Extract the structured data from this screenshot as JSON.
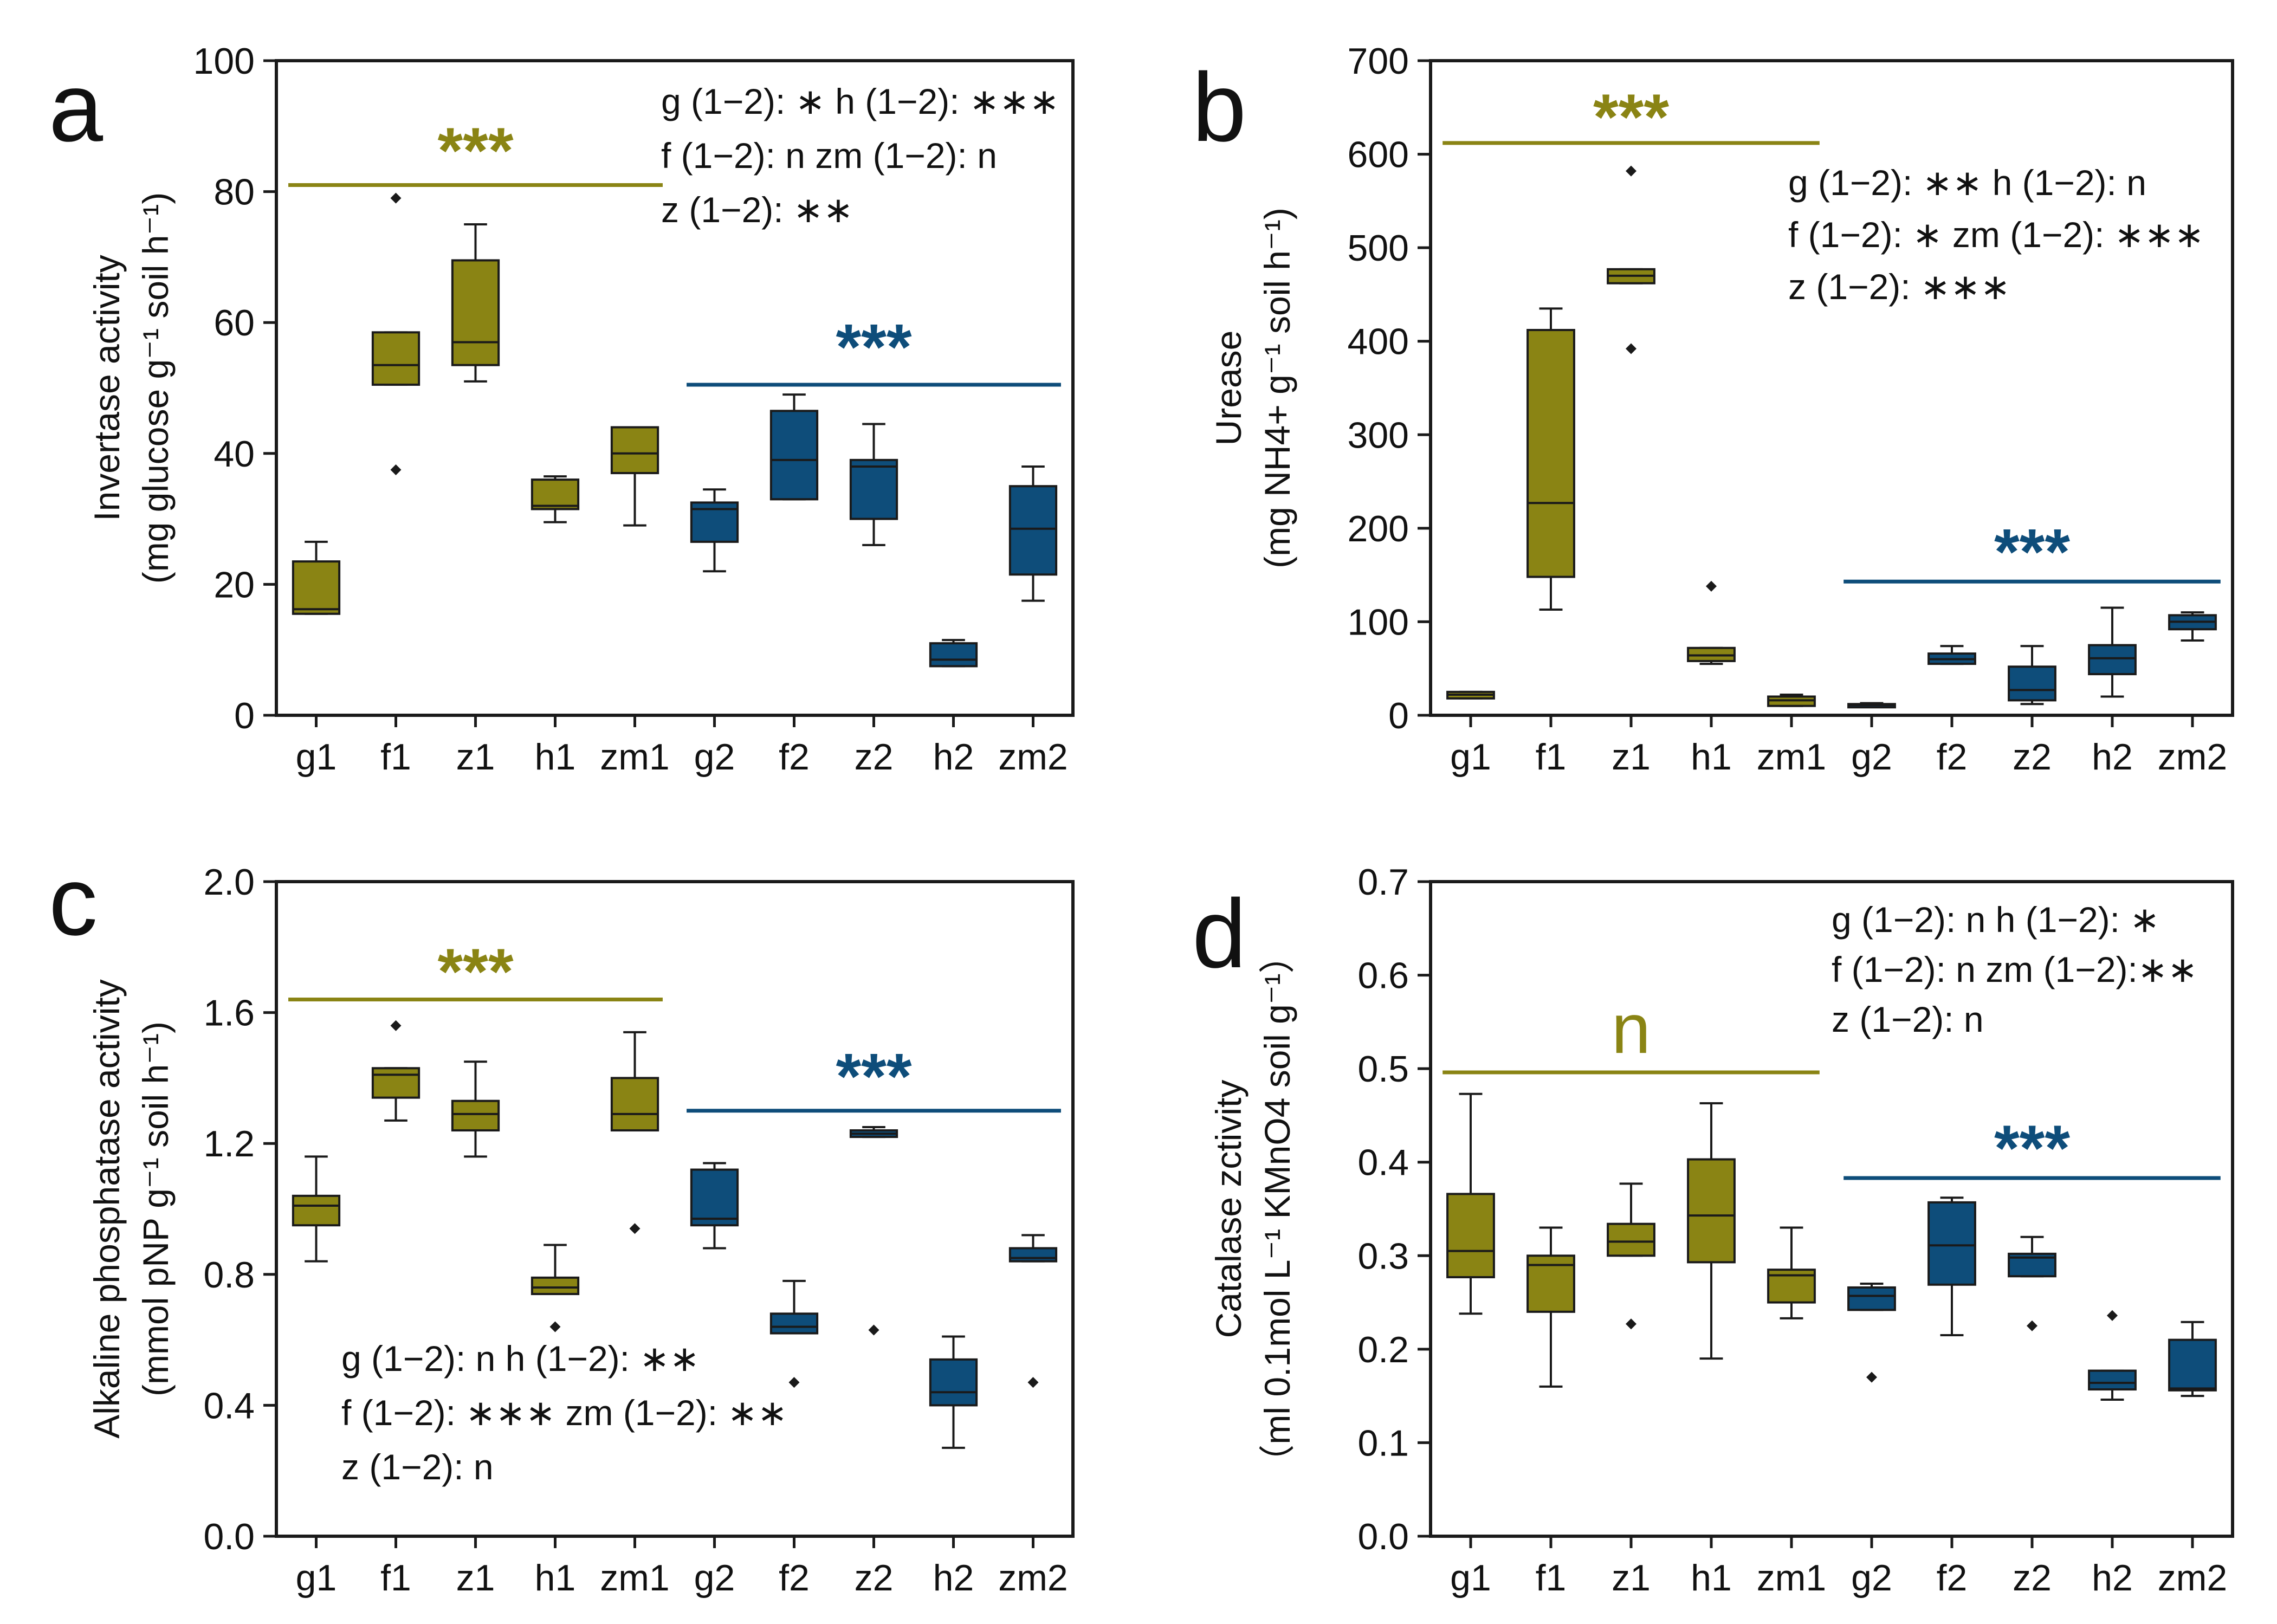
{
  "colors": {
    "group1": "#8a8414",
    "group2": "#0e4d7a",
    "outline": "#1a1a1a",
    "text": "#111111"
  },
  "chart_data": [
    {
      "type": "box",
      "panel_label": "a",
      "ylabel_main": "Invertase activity",
      "ylabel_unit": "(mg glucose g⁻¹ soil h⁻¹)",
      "ylim": [
        0,
        100
      ],
      "yticks": [
        "0",
        "20",
        "40",
        "60",
        "80",
        "100"
      ],
      "categories": [
        "g1",
        "f1",
        "z1",
        "h1",
        "zm1",
        "g2",
        "f2",
        "z2",
        "h2",
        "zm2"
      ],
      "boxes": [
        {
          "min": 15.5,
          "q1": 15.5,
          "median": 16.2,
          "q3": 23.5,
          "max": 26.5,
          "outliers": []
        },
        {
          "min": 50.5,
          "q1": 50.5,
          "median": 53.5,
          "q3": 58.5,
          "max": 58.5,
          "outliers": [
            79.0,
            37.5
          ]
        },
        {
          "min": 51.0,
          "q1": 53.5,
          "median": 57.0,
          "q3": 69.5,
          "max": 75.0,
          "outliers": []
        },
        {
          "min": 29.5,
          "q1": 31.5,
          "median": 32.0,
          "q3": 36.0,
          "max": 36.5,
          "outliers": []
        },
        {
          "min": 29.0,
          "q1": 37.0,
          "median": 40.0,
          "q3": 44.0,
          "max": 44.0,
          "outliers": []
        },
        {
          "min": 22.0,
          "q1": 26.5,
          "median": 31.5,
          "q3": 32.5,
          "max": 34.5,
          "outliers": []
        },
        {
          "min": 33.0,
          "q1": 33.0,
          "median": 39.0,
          "q3": 46.5,
          "max": 49.0,
          "outliers": []
        },
        {
          "min": 26.0,
          "q1": 30.0,
          "median": 38.0,
          "q3": 39.0,
          "max": 44.5,
          "outliers": []
        },
        {
          "min": 7.5,
          "q1": 7.5,
          "median": 8.5,
          "q3": 11.0,
          "max": 11.5,
          "outliers": []
        },
        {
          "min": 17.5,
          "q1": 21.5,
          "median": 28.5,
          "q3": 35.0,
          "max": 38.0,
          "outliers": []
        }
      ],
      "sig_group1": {
        "text": "***",
        "y": 81,
        "label_y": 87
      },
      "sig_group2": {
        "text": "***",
        "y": 50.5,
        "label_y": 57
      },
      "annotation_lines": [
        "g (1−2): ∗  h (1−2): ∗∗∗",
        "f (1−2): n  zm (1−2): n",
        "z (1−2): ∗∗"
      ],
      "annotation_pos": "top-right"
    },
    {
      "type": "box",
      "panel_label": "b",
      "ylabel_main": "Urease",
      "ylabel_unit": "(mg NH4+ g⁻¹ soil h⁻¹)",
      "ylim": [
        0,
        700
      ],
      "yticks": [
        "0",
        "100",
        "200",
        "300",
        "400",
        "500",
        "600",
        "700"
      ],
      "categories": [
        "g1",
        "f1",
        "z1",
        "h1",
        "zm1",
        "g2",
        "f2",
        "z2",
        "h2",
        "zm2"
      ],
      "boxes": [
        {
          "min": 18,
          "q1": 18,
          "median": 22,
          "q3": 25,
          "max": 25,
          "outliers": []
        },
        {
          "min": 113,
          "q1": 148,
          "median": 227,
          "q3": 412,
          "max": 435,
          "outliers": []
        },
        {
          "min": 462,
          "q1": 462,
          "median": 470,
          "q3": 477,
          "max": 477,
          "outliers": [
            582,
            392
          ]
        },
        {
          "min": 55,
          "q1": 58,
          "median": 64,
          "q3": 72,
          "max": 72,
          "outliers": [
            138
          ]
        },
        {
          "min": 10,
          "q1": 10,
          "median": 16,
          "q3": 20,
          "max": 22,
          "outliers": []
        },
        {
          "min": 9,
          "q1": 9,
          "median": 11,
          "q3": 12,
          "max": 13,
          "outliers": []
        },
        {
          "min": 55,
          "q1": 55,
          "median": 60,
          "q3": 66,
          "max": 74,
          "outliers": []
        },
        {
          "min": 12,
          "q1": 16,
          "median": 27,
          "q3": 52,
          "max": 74,
          "outliers": []
        },
        {
          "min": 20,
          "q1": 44,
          "median": 61,
          "q3": 75,
          "max": 115,
          "outliers": []
        },
        {
          "min": 80,
          "q1": 92,
          "median": 100,
          "q3": 107,
          "max": 110,
          "outliers": []
        }
      ],
      "sig_group1": {
        "text": "***",
        "y": 612,
        "label_y": 645
      },
      "sig_group2": {
        "text": "***",
        "y": 143,
        "label_y": 180
      },
      "annotation_lines": [
        "g (1−2): ∗∗  h (1−2): n",
        "f (1−2): ∗  zm (1−2): ∗∗∗",
        "z (1−2): ∗∗∗"
      ],
      "annotation_pos": "top-right"
    },
    {
      "type": "box",
      "panel_label": "c",
      "ylabel_main": "Alkaline phosphatase activity",
      "ylabel_unit": "(mmol pNP g⁻¹ soil h⁻¹)",
      "ylim": [
        0,
        2.0
      ],
      "yticks": [
        "0.0",
        "0.4",
        "0.8",
        "1.2",
        "1.6",
        "2.0"
      ],
      "categories": [
        "g1",
        "f1",
        "z1",
        "h1",
        "zm1",
        "g2",
        "f2",
        "z2",
        "h2",
        "zm2"
      ],
      "boxes": [
        {
          "min": 0.84,
          "q1": 0.95,
          "median": 1.01,
          "q3": 1.04,
          "max": 1.16,
          "outliers": []
        },
        {
          "min": 1.27,
          "q1": 1.34,
          "median": 1.41,
          "q3": 1.43,
          "max": 1.43,
          "outliers": [
            1.56
          ]
        },
        {
          "min": 1.16,
          "q1": 1.24,
          "median": 1.29,
          "q3": 1.33,
          "max": 1.45,
          "outliers": []
        },
        {
          "min": 0.74,
          "q1": 0.74,
          "median": 0.76,
          "q3": 0.79,
          "max": 0.89,
          "outliers": [
            0.64
          ]
        },
        {
          "min": 1.24,
          "q1": 1.24,
          "median": 1.29,
          "q3": 1.4,
          "max": 1.54,
          "outliers": [
            0.94
          ]
        },
        {
          "min": 0.88,
          "q1": 0.95,
          "median": 0.97,
          "q3": 1.12,
          "max": 1.14,
          "outliers": []
        },
        {
          "min": 0.62,
          "q1": 0.62,
          "median": 0.64,
          "q3": 0.68,
          "max": 0.78,
          "outliers": [
            0.47
          ]
        },
        {
          "min": 1.22,
          "q1": 1.22,
          "median": 1.23,
          "q3": 1.24,
          "max": 1.25,
          "outliers": [
            0.63
          ]
        },
        {
          "min": 0.27,
          "q1": 0.4,
          "median": 0.44,
          "q3": 0.54,
          "max": 0.61,
          "outliers": []
        },
        {
          "min": 0.84,
          "q1": 0.84,
          "median": 0.85,
          "q3": 0.88,
          "max": 0.92,
          "outliers": [
            0.47
          ]
        }
      ],
      "sig_group1": {
        "text": "***",
        "y": 1.64,
        "label_y": 1.74
      },
      "sig_group2": {
        "text": "***",
        "y": 1.3,
        "label_y": 1.42
      },
      "annotation_lines": [
        "g (1−2): n          h (1−2): ∗∗",
        "f (1−2): ∗∗∗  zm (1−2): ∗∗",
        "z (1−2): n"
      ],
      "annotation_pos": "bottom-left"
    },
    {
      "type": "box",
      "panel_label": "d",
      "ylabel_main": "Catalase zctivity",
      "ylabel_unit": "（ml 0.1mol L⁻¹ KMnO4 soil g⁻¹）",
      "ylim": [
        0,
        0.7
      ],
      "yticks": [
        "0.0",
        "0.1",
        "0.2",
        "0.3",
        "0.4",
        "0.5",
        "0.6",
        "0.7"
      ],
      "categories": [
        "g1",
        "f1",
        "z1",
        "h1",
        "zm1",
        "g2",
        "f2",
        "z2",
        "h2",
        "zm2"
      ],
      "boxes": [
        {
          "min": 0.238,
          "q1": 0.277,
          "median": 0.305,
          "q3": 0.366,
          "max": 0.473,
          "outliers": []
        },
        {
          "min": 0.16,
          "q1": 0.24,
          "median": 0.29,
          "q3": 0.3,
          "max": 0.33,
          "outliers": []
        },
        {
          "min": 0.3,
          "q1": 0.3,
          "median": 0.315,
          "q3": 0.334,
          "max": 0.377,
          "outliers": [
            0.227
          ]
        },
        {
          "min": 0.19,
          "q1": 0.293,
          "median": 0.343,
          "q3": 0.403,
          "max": 0.463,
          "outliers": []
        },
        {
          "min": 0.233,
          "q1": 0.25,
          "median": 0.279,
          "q3": 0.285,
          "max": 0.33,
          "outliers": []
        },
        {
          "min": 0.242,
          "q1": 0.242,
          "median": 0.257,
          "q3": 0.266,
          "max": 0.27,
          "outliers": [
            0.17
          ]
        },
        {
          "min": 0.215,
          "q1": 0.269,
          "median": 0.311,
          "q3": 0.357,
          "max": 0.362,
          "outliers": []
        },
        {
          "min": 0.278,
          "q1": 0.278,
          "median": 0.298,
          "q3": 0.302,
          "max": 0.32,
          "outliers": [
            0.225
          ]
        },
        {
          "min": 0.146,
          "q1": 0.157,
          "median": 0.164,
          "q3": 0.177,
          "max": 0.177,
          "outliers": [
            0.236
          ]
        },
        {
          "min": 0.15,
          "q1": 0.156,
          "median": 0.158,
          "q3": 0.21,
          "max": 0.229,
          "outliers": []
        }
      ],
      "sig_group1": {
        "text": "n",
        "y": 0.496,
        "label_y": 0.54
      },
      "sig_group2": {
        "text": "***",
        "y": 0.383,
        "label_y": 0.42
      },
      "annotation_lines": [
        "g (1−2): n   h (1−2): ∗",
        "f (1−2): n  zm (1−2):∗∗",
        "z (1−2): n"
      ],
      "annotation_pos": "top-right"
    }
  ]
}
